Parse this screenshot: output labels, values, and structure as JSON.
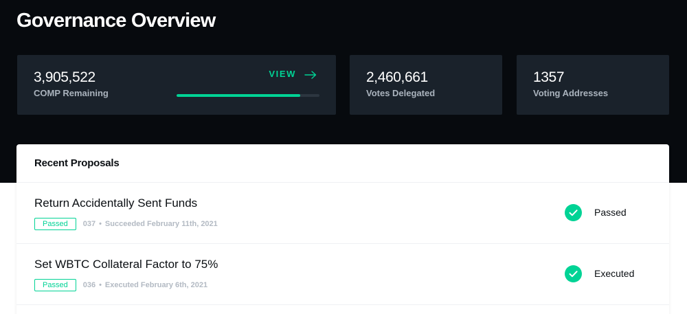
{
  "page": {
    "title": "Governance Overview"
  },
  "stats": {
    "comp_remaining": {
      "value": "3,905,522",
      "label": "COMP Remaining",
      "view_label": "VIEW",
      "view_icon": "arrow-right-icon",
      "progress_percent": 86.5
    },
    "votes_delegated": {
      "value": "2,460,661",
      "label": "Votes Delegated"
    },
    "voting_addresses": {
      "value": "1357",
      "label": "Voting Addresses"
    }
  },
  "proposals": {
    "header": "Recent Proposals",
    "items": [
      {
        "title": "Return Accidentally Sent Funds",
        "badge": "Passed",
        "number": "037",
        "status_text": "Succeeded February 11th, 2021",
        "state_label": "Passed",
        "state_icon": "check-circle-icon"
      },
      {
        "title": "Set WBTC Collateral Factor to 75%",
        "badge": "Passed",
        "number": "036",
        "status_text": "Executed February 6th, 2021",
        "state_label": "Executed",
        "state_icon": "check-circle-icon"
      }
    ]
  },
  "colors": {
    "background_dark": "#070a0e",
    "card_dark": "#1a222b",
    "accent_green": "#00d395",
    "muted_text": "#aab3bd"
  }
}
